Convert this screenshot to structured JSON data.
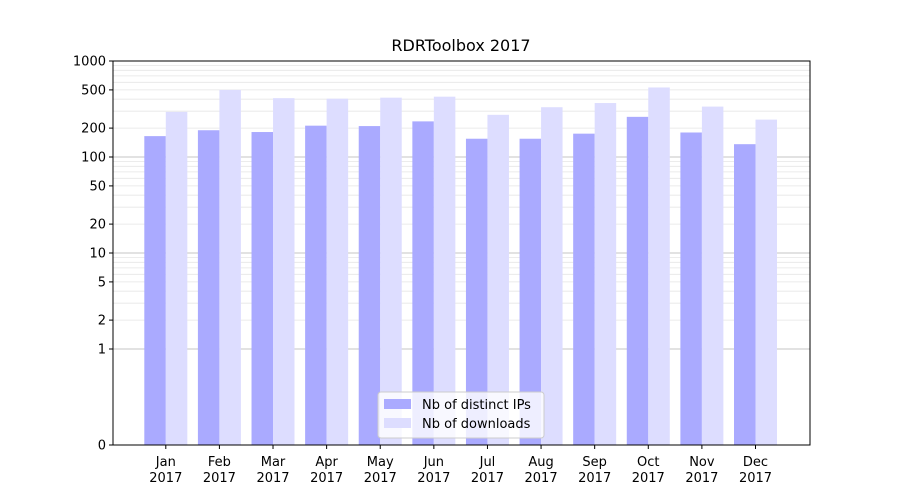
{
  "chart_data": {
    "type": "bar",
    "title": "RDRToolbox 2017",
    "xlabel": "",
    "ylabel": "",
    "yscale": "symlog",
    "ylim": [
      0,
      1000
    ],
    "y_ticks": [
      0,
      1,
      2,
      5,
      10,
      20,
      50,
      100,
      200,
      500,
      1000
    ],
    "y_tick_labels": [
      "0",
      "1",
      "2",
      "5",
      "10",
      "20",
      "50",
      "100",
      "200",
      "500",
      "1000"
    ],
    "categories": [
      "Jan",
      "Feb",
      "Mar",
      "Apr",
      "May",
      "Jun",
      "Jul",
      "Aug",
      "Sep",
      "Oct",
      "Nov",
      "Dec"
    ],
    "category_year": "2017",
    "grid": true,
    "legend_position": "bottom-center",
    "series": [
      {
        "name": "Nb of distinct IPs",
        "color": "#aaaaff",
        "values": [
          165,
          190,
          182,
          212,
          210,
          235,
          155,
          155,
          175,
          262,
          180,
          136
        ]
      },
      {
        "name": "Nb of downloads",
        "color": "#ddddff",
        "values": [
          295,
          500,
          410,
          405,
          415,
          425,
          275,
          330,
          365,
          530,
          335,
          245
        ]
      }
    ]
  }
}
